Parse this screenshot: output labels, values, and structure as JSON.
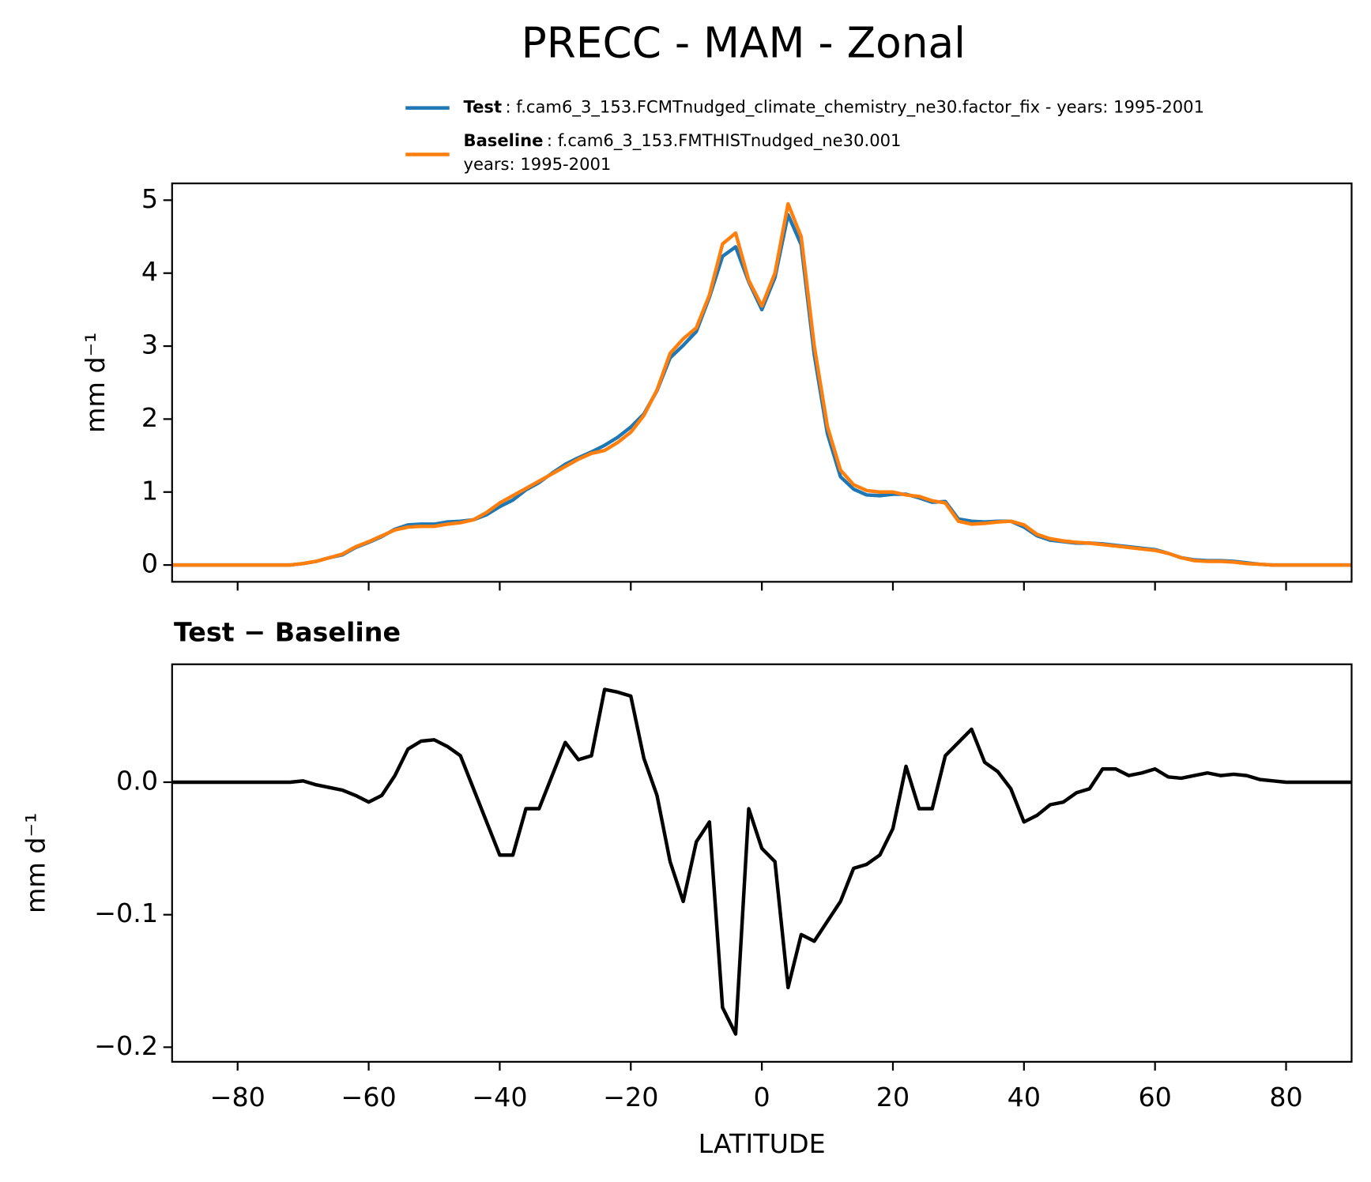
{
  "chart_data": [
    {
      "type": "line",
      "title": "PRECC - MAM - Zonal",
      "ylabel": "mm d⁻¹",
      "x": [
        -90,
        -88,
        -86,
        -84,
        -82,
        -80,
        -78,
        -76,
        -74,
        -72,
        -70,
        -68,
        -66,
        -64,
        -62,
        -60,
        -58,
        -56,
        -54,
        -52,
        -50,
        -48,
        -46,
        -44,
        -42,
        -40,
        -38,
        -36,
        -34,
        -32,
        -30,
        -28,
        -26,
        -24,
        -22,
        -20,
        -18,
        -16,
        -14,
        -12,
        -10,
        -8,
        -6,
        -4,
        -2,
        0,
        2,
        4,
        6,
        8,
        10,
        12,
        14,
        16,
        18,
        20,
        22,
        24,
        26,
        28,
        30,
        32,
        34,
        36,
        38,
        40,
        42,
        44,
        46,
        48,
        50,
        52,
        54,
        56,
        58,
        60,
        62,
        64,
        66,
        68,
        70,
        72,
        74,
        76,
        78,
        80,
        82,
        84,
        86,
        88,
        90
      ],
      "xlim": [
        -90,
        90
      ],
      "xticks": [
        -80,
        -60,
        -40,
        -20,
        0,
        20,
        40,
        60,
        80
      ],
      "ylim": [
        -0.23,
        5.23
      ],
      "yticks": [
        0,
        1,
        2,
        3,
        4,
        5
      ],
      "series": [
        {
          "name": "Test",
          "legend_text": [
            ": f.cam6_3_153.FCMTnudged_climate_chemistry_ne30.factor_fix - years: 1995-2001"
          ],
          "color": "#1f77b4",
          "values": [
            0,
            0,
            0,
            0,
            0,
            0,
            0,
            0,
            0,
            0,
            0.02,
            0.05,
            0.1,
            0.14,
            0.24,
            0.31,
            0.39,
            0.49,
            0.55,
            0.56,
            0.56,
            0.59,
            0.6,
            0.62,
            0.69,
            0.8,
            0.89,
            1.03,
            1.13,
            1.26,
            1.38,
            1.47,
            1.55,
            1.64,
            1.75,
            1.89,
            2.07,
            2.39,
            2.84,
            3.01,
            3.2,
            3.67,
            4.23,
            4.36,
            3.88,
            3.5,
            3.94,
            4.8,
            4.39,
            2.88,
            1.8,
            1.21,
            1.04,
            0.96,
            0.95,
            0.97,
            0.97,
            0.92,
            0.86,
            0.87,
            0.63,
            0.6,
            0.59,
            0.6,
            0.6,
            0.52,
            0.4,
            0.34,
            0.32,
            0.3,
            0.3,
            0.29,
            0.27,
            0.25,
            0.23,
            0.21,
            0.16,
            0.1,
            0.07,
            0.06,
            0.06,
            0.05,
            0.03,
            0.01,
            0,
            0,
            0,
            0,
            0,
            0,
            0
          ]
        },
        {
          "name": "Baseline",
          "legend_text": [
            ": f.cam6_3_153.FMTHISTnudged_ne30.001",
            "years: 1995-2001"
          ],
          "color": "#ff7f0e",
          "values": [
            0,
            0,
            0,
            0,
            0,
            0,
            0,
            0,
            0,
            0,
            0.02,
            0.05,
            0.1,
            0.15,
            0.25,
            0.32,
            0.4,
            0.48,
            0.52,
            0.53,
            0.53,
            0.56,
            0.58,
            0.62,
            0.72,
            0.85,
            0.95,
            1.05,
            1.15,
            1.25,
            1.35,
            1.45,
            1.53,
            1.57,
            1.68,
            1.82,
            2.05,
            2.4,
            2.9,
            3.1,
            3.25,
            3.7,
            4.4,
            4.55,
            3.9,
            3.55,
            4.0,
            4.95,
            4.5,
            3.0,
            1.9,
            1.3,
            1.1,
            1.02,
            1.0,
            1.0,
            0.96,
            0.94,
            0.88,
            0.85,
            0.6,
            0.56,
            0.57,
            0.59,
            0.6,
            0.55,
            0.42,
            0.36,
            0.33,
            0.31,
            0.3,
            0.28,
            0.26,
            0.24,
            0.22,
            0.2,
            0.16,
            0.1,
            0.06,
            0.05,
            0.05,
            0.04,
            0.02,
            0.01,
            0,
            0,
            0,
            0,
            0,
            0,
            0
          ]
        }
      ]
    },
    {
      "type": "line",
      "title": "Test − Baseline",
      "ylabel": "mm d⁻¹",
      "xlabel": "LATITUDE",
      "x": [
        -90,
        -88,
        -86,
        -84,
        -82,
        -80,
        -78,
        -76,
        -74,
        -72,
        -70,
        -68,
        -66,
        -64,
        -62,
        -60,
        -58,
        -56,
        -54,
        -52,
        -50,
        -48,
        -46,
        -44,
        -42,
        -40,
        -38,
        -36,
        -34,
        -32,
        -30,
        -28,
        -26,
        -24,
        -22,
        -20,
        -18,
        -16,
        -14,
        -12,
        -10,
        -8,
        -6,
        -4,
        -2,
        0,
        2,
        4,
        6,
        8,
        10,
        12,
        14,
        16,
        18,
        20,
        22,
        24,
        26,
        28,
        30,
        32,
        34,
        36,
        38,
        40,
        42,
        44,
        46,
        48,
        50,
        52,
        54,
        56,
        58,
        60,
        62,
        64,
        66,
        68,
        70,
        72,
        74,
        76,
        78,
        80,
        82,
        84,
        86,
        88,
        90
      ],
      "xlim": [
        -90,
        90
      ],
      "xticks": [
        {
          "value": -80,
          "label": "−80"
        },
        {
          "value": -60,
          "label": "−60"
        },
        {
          "value": -40,
          "label": "−40"
        },
        {
          "value": -20,
          "label": "−20"
        },
        0,
        20,
        40,
        60,
        80
      ],
      "ylim": [
        -0.211,
        0.089
      ],
      "yticks": [
        {
          "value": -0.2,
          "label": "−0.2"
        },
        {
          "value": -0.1,
          "label": "−0.1"
        },
        {
          "value": 0,
          "label": "0.0"
        }
      ],
      "series": [
        {
          "color": "#000000",
          "values": [
            0,
            0,
            0,
            0,
            0,
            0,
            0,
            0,
            0,
            0,
            0.001,
            -0.002,
            -0.004,
            -0.006,
            -0.01,
            -0.015,
            -0.01,
            0.005,
            0.025,
            0.031,
            0.032,
            0.027,
            0.02,
            -0.005,
            -0.03,
            -0.055,
            -0.055,
            -0.02,
            -0.02,
            0.005,
            0.03,
            0.017,
            0.02,
            0.07,
            0.068,
            0.065,
            0.018,
            -0.01,
            -0.06,
            -0.09,
            -0.045,
            -0.03,
            -0.17,
            -0.19,
            -0.02,
            -0.05,
            -0.06,
            -0.155,
            -0.115,
            -0.12,
            -0.105,
            -0.09,
            -0.065,
            -0.062,
            -0.055,
            -0.035,
            0.012,
            -0.02,
            -0.02,
            0.02,
            0.03,
            0.04,
            0.015,
            0.008,
            -0.005,
            -0.03,
            -0.025,
            -0.017,
            -0.015,
            -0.008,
            -0.005,
            0.01,
            0.01,
            0.005,
            0.007,
            0.01,
            0.004,
            0.003,
            0.005,
            0.007,
            0.005,
            0.006,
            0.005,
            0.002,
            0.001,
            0,
            0,
            0,
            0,
            0,
            0
          ]
        }
      ]
    }
  ]
}
